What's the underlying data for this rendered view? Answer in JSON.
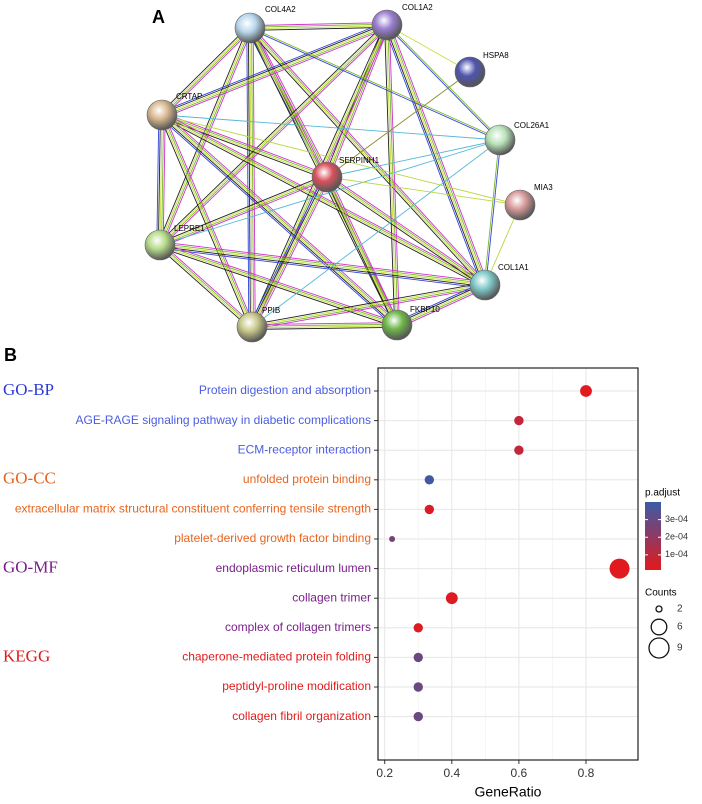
{
  "panel_labels": [
    "A",
    "B"
  ],
  "network": {
    "nodes": [
      {
        "label": "COL4A2",
        "color": "#b8d8ee"
      },
      {
        "label": "COL1A2",
        "color": "#9a7fd1"
      },
      {
        "label": "HSPA8",
        "color": "#4f55b0"
      },
      {
        "label": "CRTAP",
        "color": "#d8b890"
      },
      {
        "label": "COL26A1",
        "color": "#b9e3b9"
      },
      {
        "label": "SERPINH1",
        "color": "#d9525e"
      },
      {
        "label": "MIA3",
        "color": "#d89a9a"
      },
      {
        "label": "LEPRE1",
        "color": "#b5db8a"
      },
      {
        "label": "COL1A1",
        "color": "#7fc9c9"
      },
      {
        "label": "PPIB",
        "color": "#c9c88a"
      },
      {
        "label": "FKBP10",
        "color": "#6fb84a"
      }
    ]
  },
  "chart_data": {
    "type": "dot",
    "x_label": "GeneRatio",
    "groups": [
      {
        "name": "GO-BP",
        "color": "#2b3bd9"
      },
      {
        "name": "GO-CC",
        "color": "#e8641e"
      },
      {
        "name": "GO-MF",
        "color": "#7a1f8a"
      },
      {
        "name": "KEGG",
        "color": "#e01b1b"
      }
    ],
    "categories": [
      "Protein digestion and absorption",
      "AGE-RAGE signaling pathway in diabetic complications",
      "ECM-receptor interaction",
      "unfolded protein binding",
      "extracellular matrix structural constituent conferring tensile strength",
      "platelet-derived growth factor binding",
      "endoplasmic reticulum lumen",
      "collagen trimer",
      "complex of collagen trimers",
      "chaperone-mediated protein folding",
      "peptidyl-proline modification",
      "collagen fibril organization"
    ],
    "category_colors": [
      "#4a5ce0",
      "#4a5ce0",
      "#4a5ce0",
      "#e8641e",
      "#e8641e",
      "#e8641e",
      "#7a1f8a",
      "#7a1f8a",
      "#7a1f8a",
      "#e01b1b",
      "#e01b1b",
      "#e01b1b"
    ],
    "values": [
      0.8,
      0.6,
      0.6,
      0.333,
      0.333,
      0.222,
      0.9,
      0.4,
      0.3,
      0.3,
      0.3,
      0.3
    ],
    "sizes": [
      4,
      3,
      3,
      3,
      3,
      2,
      9,
      4,
      3,
      3,
      3,
      3
    ],
    "p_adjust": [
      2e-05,
      9e-05,
      9e-05,
      0.00038,
      4e-05,
      0.00026,
      2e-05,
      3e-05,
      3e-05,
      0.00029,
      0.00029,
      0.00029
    ],
    "xlim": [
      0.18,
      0.955
    ],
    "xticks": [
      0.2,
      0.4,
      0.6,
      0.8
    ],
    "grid": true,
    "color_legend": {
      "title": "p.adjust",
      "clim": [
        1.4e-05,
        0.0004
      ],
      "low_color": "#e3191c",
      "high_color": "#3a5ba8",
      "ticks": [
        {
          "value": 0.0001,
          "label": "1e-04"
        },
        {
          "value": 0.0002,
          "label": "2e-04"
        },
        {
          "value": 0.0003,
          "label": "3e-04"
        }
      ]
    },
    "size_legend": {
      "title": "Counts",
      "size_lim": [
        2,
        9
      ],
      "ticks": [
        2,
        6,
        9
      ]
    }
  }
}
